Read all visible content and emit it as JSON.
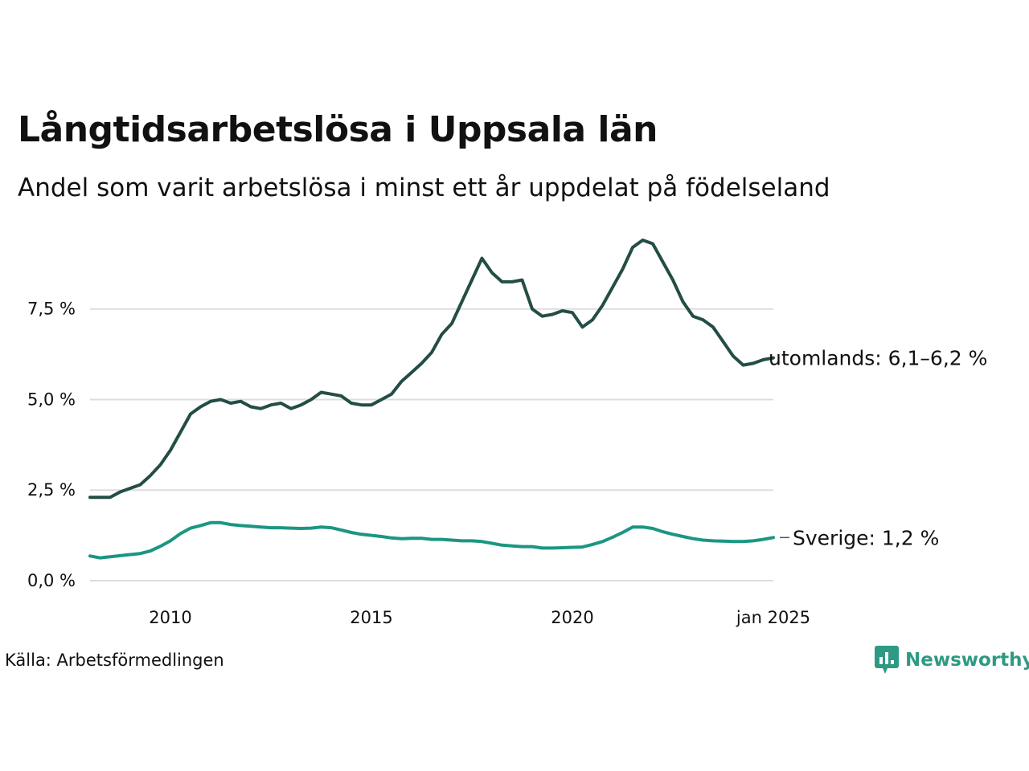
{
  "title": "Långtidsarbetslösa i Uppsala län",
  "subtitle": "Andel som varit arbetslösa i minst ett år uppdelat på födelseland",
  "source": "Källa: Arbetsförmedlingen",
  "brand": {
    "name": "Newsworthy",
    "icon": "newsworthy-logo-icon",
    "color": "#2e9a83"
  },
  "chart_data": {
    "type": "line",
    "xlim": [
      2008.0,
      2025.0
    ],
    "ylim": [
      0,
      9.6
    ],
    "x_ticks": [
      {
        "value": 2010.0,
        "label": "2010"
      },
      {
        "value": 2015.0,
        "label": "2015"
      },
      {
        "value": 2020.0,
        "label": "2020"
      },
      {
        "value": 2025.0,
        "label": "jan 2025"
      }
    ],
    "y_ticks": [
      {
        "value": 0,
        "label": "0,0 %"
      },
      {
        "value": 2.5,
        "label": "2,5 %"
      },
      {
        "value": 5.0,
        "label": "5,0 %"
      },
      {
        "value": 7.5,
        "label": "7,5 %"
      }
    ],
    "grid": true,
    "series": [
      {
        "label": "utomlands: 6,1–6,2 %",
        "color": "#234d45",
        "points": [
          [
            2008.0,
            2.3
          ],
          [
            2008.5,
            2.3
          ],
          [
            2008.75,
            2.45
          ],
          [
            2009.0,
            2.55
          ],
          [
            2009.25,
            2.65
          ],
          [
            2009.5,
            2.9
          ],
          [
            2009.75,
            3.2
          ],
          [
            2010.0,
            3.6
          ],
          [
            2010.25,
            4.1
          ],
          [
            2010.5,
            4.6
          ],
          [
            2010.75,
            4.8
          ],
          [
            2011.0,
            4.95
          ],
          [
            2011.25,
            5.0
          ],
          [
            2011.5,
            4.9
          ],
          [
            2011.75,
            4.95
          ],
          [
            2012.0,
            4.8
          ],
          [
            2012.25,
            4.75
          ],
          [
            2012.5,
            4.85
          ],
          [
            2012.75,
            4.9
          ],
          [
            2013.0,
            4.75
          ],
          [
            2013.25,
            4.85
          ],
          [
            2013.5,
            5.0
          ],
          [
            2013.75,
            5.2
          ],
          [
            2014.0,
            5.15
          ],
          [
            2014.25,
            5.1
          ],
          [
            2014.5,
            4.9
          ],
          [
            2014.75,
            4.85
          ],
          [
            2015.0,
            4.85
          ],
          [
            2015.25,
            5.0
          ],
          [
            2015.5,
            5.15
          ],
          [
            2015.75,
            5.5
          ],
          [
            2016.0,
            5.75
          ],
          [
            2016.25,
            6.0
          ],
          [
            2016.5,
            6.3
          ],
          [
            2016.75,
            6.8
          ],
          [
            2017.0,
            7.1
          ],
          [
            2017.25,
            7.7
          ],
          [
            2017.5,
            8.3
          ],
          [
            2017.75,
            8.9
          ],
          [
            2018.0,
            8.5
          ],
          [
            2018.25,
            8.25
          ],
          [
            2018.5,
            8.25
          ],
          [
            2018.75,
            8.3
          ],
          [
            2019.0,
            7.5
          ],
          [
            2019.25,
            7.3
          ],
          [
            2019.5,
            7.35
          ],
          [
            2019.75,
            7.45
          ],
          [
            2020.0,
            7.4
          ],
          [
            2020.25,
            7.0
          ],
          [
            2020.5,
            7.2
          ],
          [
            2020.75,
            7.6
          ],
          [
            2021.0,
            8.1
          ],
          [
            2021.25,
            8.6
          ],
          [
            2021.5,
            9.2
          ],
          [
            2021.75,
            9.4
          ],
          [
            2022.0,
            9.3
          ],
          [
            2022.25,
            8.8
          ],
          [
            2022.5,
            8.3
          ],
          [
            2022.75,
            7.7
          ],
          [
            2023.0,
            7.3
          ],
          [
            2023.25,
            7.2
          ],
          [
            2023.5,
            7.0
          ],
          [
            2023.75,
            6.6
          ],
          [
            2024.0,
            6.2
          ],
          [
            2024.25,
            5.95
          ],
          [
            2024.5,
            6.0
          ],
          [
            2024.75,
            6.1
          ],
          [
            2025.0,
            6.15
          ]
        ]
      },
      {
        "label": "Sverige: 1,2 %",
        "color": "#1b9683",
        "points": [
          [
            2008.0,
            0.68
          ],
          [
            2008.25,
            0.63
          ],
          [
            2008.5,
            0.66
          ],
          [
            2008.75,
            0.69
          ],
          [
            2009.0,
            0.72
          ],
          [
            2009.25,
            0.75
          ],
          [
            2009.5,
            0.82
          ],
          [
            2009.75,
            0.95
          ],
          [
            2010.0,
            1.1
          ],
          [
            2010.25,
            1.3
          ],
          [
            2010.5,
            1.45
          ],
          [
            2010.75,
            1.52
          ],
          [
            2011.0,
            1.6
          ],
          [
            2011.25,
            1.6
          ],
          [
            2011.5,
            1.55
          ],
          [
            2011.75,
            1.52
          ],
          [
            2012.0,
            1.5
          ],
          [
            2012.25,
            1.48
          ],
          [
            2012.5,
            1.46
          ],
          [
            2012.75,
            1.46
          ],
          [
            2013.0,
            1.45
          ],
          [
            2013.25,
            1.44
          ],
          [
            2013.5,
            1.45
          ],
          [
            2013.75,
            1.48
          ],
          [
            2014.0,
            1.46
          ],
          [
            2014.25,
            1.4
          ],
          [
            2014.5,
            1.33
          ],
          [
            2014.75,
            1.28
          ],
          [
            2015.0,
            1.25
          ],
          [
            2015.25,
            1.22
          ],
          [
            2015.5,
            1.18
          ],
          [
            2015.75,
            1.16
          ],
          [
            2016.0,
            1.17
          ],
          [
            2016.25,
            1.17
          ],
          [
            2016.5,
            1.14
          ],
          [
            2016.75,
            1.14
          ],
          [
            2017.0,
            1.12
          ],
          [
            2017.25,
            1.1
          ],
          [
            2017.5,
            1.1
          ],
          [
            2017.75,
            1.08
          ],
          [
            2018.0,
            1.03
          ],
          [
            2018.25,
            0.98
          ],
          [
            2018.5,
            0.96
          ],
          [
            2018.75,
            0.94
          ],
          [
            2019.0,
            0.94
          ],
          [
            2019.25,
            0.9
          ],
          [
            2019.5,
            0.9
          ],
          [
            2019.75,
            0.91
          ],
          [
            2020.0,
            0.92
          ],
          [
            2020.25,
            0.93
          ],
          [
            2020.5,
            1.0
          ],
          [
            2020.75,
            1.08
          ],
          [
            2021.0,
            1.2
          ],
          [
            2021.25,
            1.33
          ],
          [
            2021.5,
            1.48
          ],
          [
            2021.75,
            1.48
          ],
          [
            2022.0,
            1.44
          ],
          [
            2022.25,
            1.35
          ],
          [
            2022.5,
            1.28
          ],
          [
            2022.75,
            1.22
          ],
          [
            2023.0,
            1.16
          ],
          [
            2023.25,
            1.12
          ],
          [
            2023.5,
            1.1
          ],
          [
            2023.75,
            1.09
          ],
          [
            2024.0,
            1.08
          ],
          [
            2024.25,
            1.08
          ],
          [
            2024.5,
            1.1
          ],
          [
            2024.75,
            1.14
          ],
          [
            2025.0,
            1.19
          ]
        ]
      }
    ]
  }
}
